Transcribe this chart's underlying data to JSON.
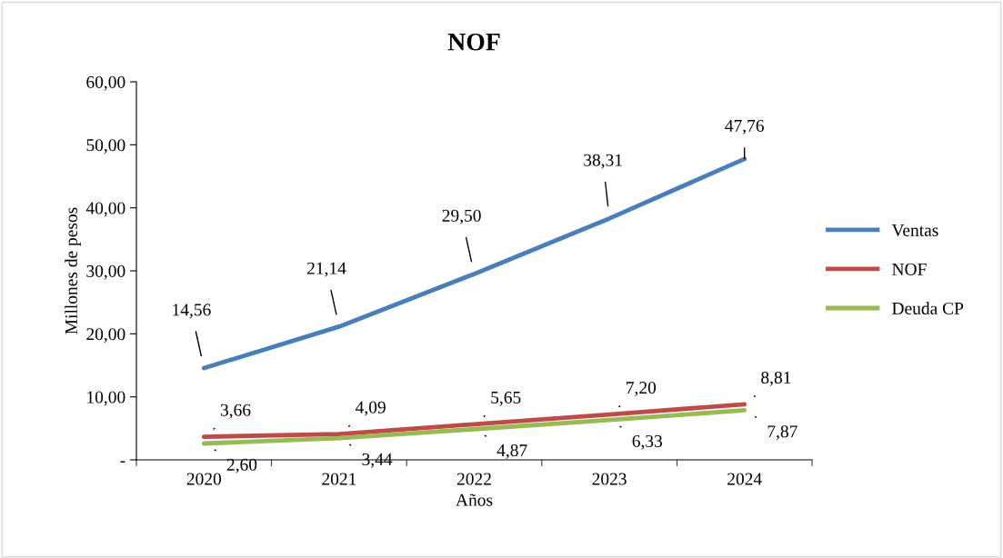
{
  "chart_data": {
    "type": "line",
    "title": "NOF",
    "xlabel": "Años",
    "ylabel": "Millones de pesos",
    "categories": [
      "2020",
      "2021",
      "2022",
      "2023",
      "2024"
    ],
    "series": [
      {
        "name": "Ventas",
        "color": "#4a7ebb",
        "values": [
          14.56,
          21.14,
          29.5,
          38.31,
          47.76
        ],
        "value_labels": [
          "14,56",
          "21,14",
          "29,50",
          "38,31",
          "47,76"
        ]
      },
      {
        "name": "NOF",
        "color": "#be4b48",
        "values": [
          3.66,
          4.09,
          5.65,
          7.2,
          8.81
        ],
        "value_labels": [
          "3,66",
          "4,09",
          "5,65",
          "7,20",
          "8,81"
        ]
      },
      {
        "name": "Deuda CP",
        "color": "#98b954",
        "values": [
          2.6,
          3.44,
          4.87,
          6.33,
          7.87
        ],
        "value_labels": [
          "2,60",
          "3,44",
          "4,87",
          "6,33",
          "7,87"
        ]
      }
    ],
    "ylim": [
      0,
      60
    ],
    "yticks": [
      {
        "value": 0,
        "label": "-"
      },
      {
        "value": 10,
        "label": "10,00"
      },
      {
        "value": 20,
        "label": "20,00"
      },
      {
        "value": 30,
        "label": "30,00"
      },
      {
        "value": 40,
        "label": "40,00"
      },
      {
        "value": 50,
        "label": "50,00"
      },
      {
        "value": 60,
        "label": "60,00"
      }
    ],
    "grid": false,
    "legend": "right",
    "marker": "none",
    "line_style": "solid"
  }
}
